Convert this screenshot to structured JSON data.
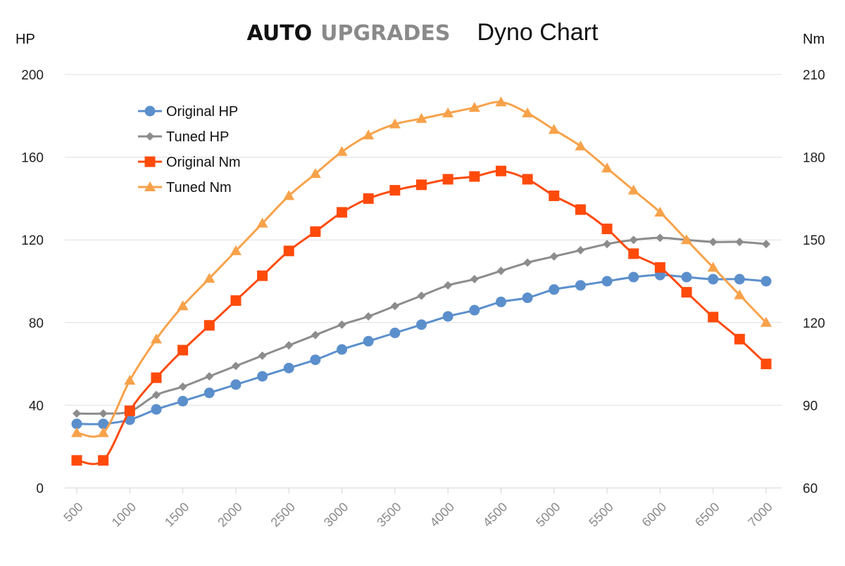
{
  "colors": {
    "original_hp": "#5b8fcc",
    "tuned_hp": "#8c8c8c",
    "original_nm": "#ff4a0a",
    "tuned_nm": "#f7a24a",
    "grid": "#dcdfe3",
    "brand_dark": "#111111",
    "brand_grey": "#8a8a8a"
  },
  "header": {
    "brand_part1": "AUTO",
    "brand_part2": "UPGRADES",
    "title": "Dyno Chart"
  },
  "chart_data": {
    "type": "line",
    "title": "Dyno Chart",
    "y_left_label": "HP",
    "y_right_label": "Nm",
    "y_left_range": [
      0,
      200
    ],
    "y_left_ticks": [
      0,
      40,
      80,
      120,
      160,
      200
    ],
    "y_right_range": [
      60,
      210
    ],
    "y_right_ticks": [
      60,
      90,
      120,
      150,
      180,
      210
    ],
    "grid": true,
    "legend_position": "top-left",
    "x": [
      500,
      750,
      1000,
      1250,
      1500,
      1750,
      2000,
      2250,
      2500,
      2750,
      3000,
      3250,
      3500,
      3750,
      4000,
      4250,
      4500,
      4750,
      5000,
      5250,
      5500,
      5750,
      6000,
      6250,
      6500,
      6750,
      7000
    ],
    "x_tick_labels": [
      "500",
      "1000",
      "1500",
      "2000",
      "2500",
      "3000",
      "3500",
      "4000",
      "4500",
      "5000",
      "5500",
      "6000",
      "6500",
      "7000"
    ],
    "series": [
      {
        "name": "Original HP",
        "axis": "left",
        "marker": "circle",
        "color": "#5b8fcc",
        "values": [
          31,
          31,
          33,
          38,
          42,
          46,
          50,
          54,
          58,
          62,
          67,
          71,
          75,
          79,
          83,
          86,
          90,
          92,
          96,
          98,
          100,
          102,
          103,
          102,
          101,
          101,
          100
        ]
      },
      {
        "name": "Tuned HP",
        "axis": "left",
        "marker": "diamond",
        "color": "#8c8c8c",
        "values": [
          36,
          36,
          37,
          45,
          49,
          54,
          59,
          64,
          69,
          74,
          79,
          83,
          88,
          93,
          98,
          101,
          105,
          109,
          112,
          115,
          118,
          120,
          121,
          120,
          119,
          119,
          118
        ]
      },
      {
        "name": "Original Nm",
        "axis": "right",
        "marker": "square",
        "color": "#ff4a0a",
        "values": [
          70,
          70,
          88,
          100,
          110,
          119,
          128,
          137,
          146,
          153,
          160,
          165,
          168,
          170,
          172,
          173,
          175,
          172,
          166,
          161,
          154,
          145,
          140,
          131,
          122,
          114,
          105
        ]
      },
      {
        "name": "Tuned Nm",
        "axis": "right",
        "marker": "triangle",
        "color": "#f7a24a",
        "values": [
          80,
          80,
          99,
          114,
          126,
          136,
          146,
          156,
          166,
          174,
          182,
          188,
          192,
          194,
          196,
          198,
          200,
          196,
          190,
          184,
          176,
          168,
          160,
          150,
          140,
          130,
          120
        ]
      }
    ]
  }
}
